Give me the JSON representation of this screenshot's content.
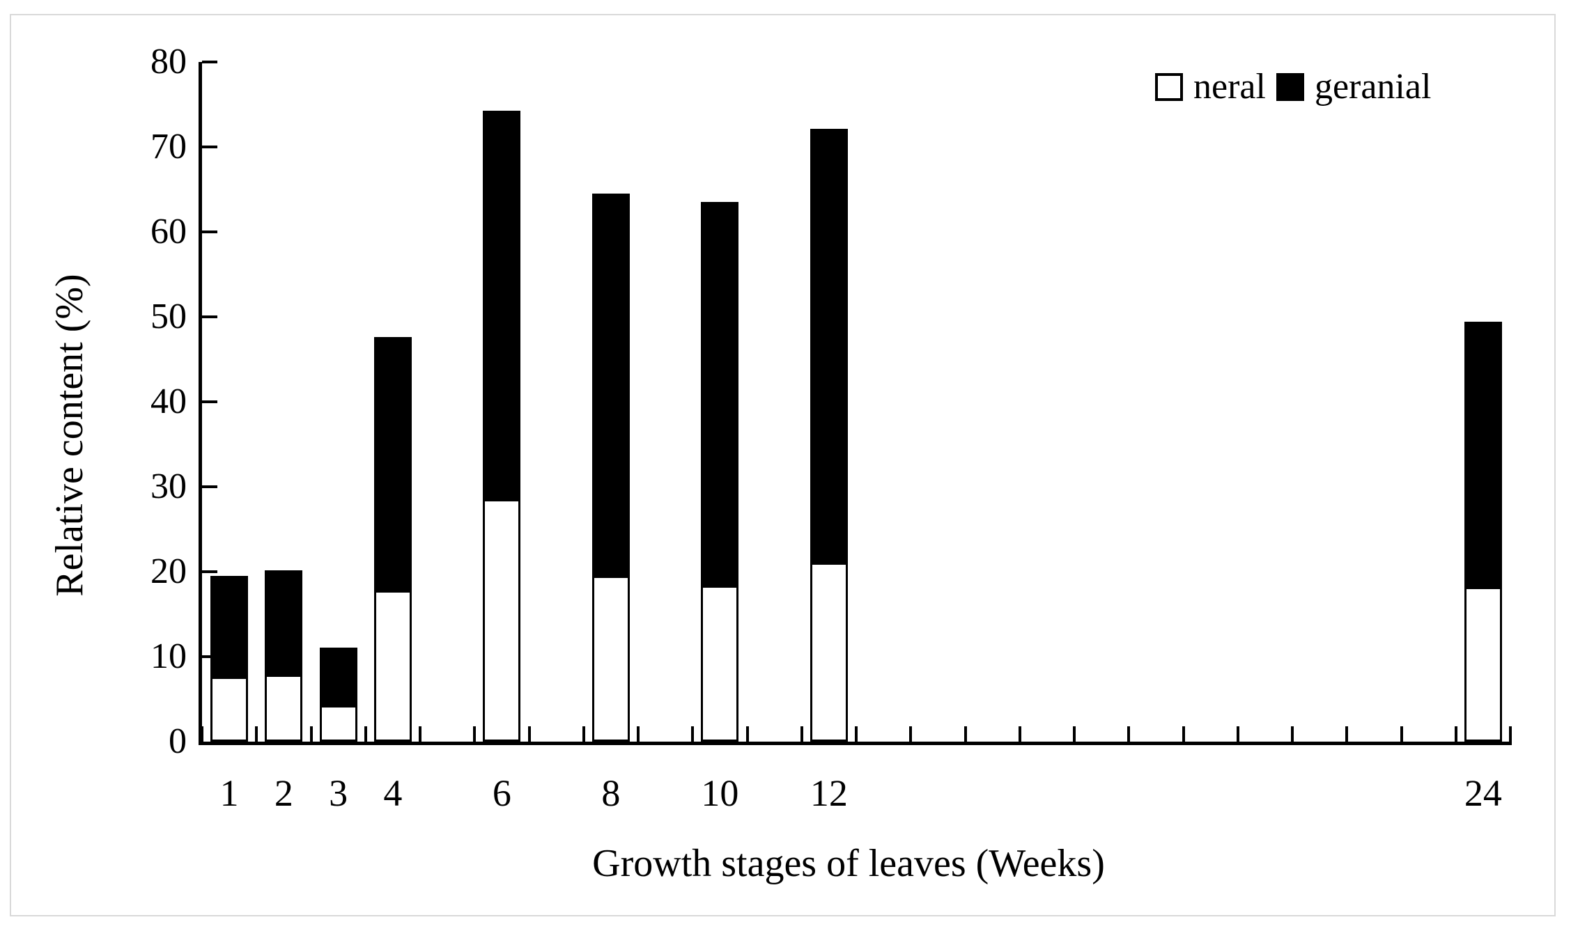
{
  "figure": {
    "background_color": "#ffffff",
    "frame_color": "#d9d9d9",
    "ink_color": "#000000"
  },
  "chart_data": {
    "type": "bar",
    "stacked": true,
    "title": "",
    "xlabel": "Growth stages of leaves (Weeks)",
    "ylabel": "Relative content (%)",
    "ylim": [
      0,
      80
    ],
    "yticks": [
      0,
      10,
      20,
      30,
      40,
      50,
      60,
      70,
      80
    ],
    "x_slot_count": 24,
    "x_ticks_at_every_slot_boundary": true,
    "grid": false,
    "legend_position": "top-right",
    "categories": [
      1,
      2,
      3,
      4,
      6,
      8,
      10,
      12,
      24
    ],
    "series": [
      {
        "name": "neral",
        "color": "#ffffff",
        "values": [
          7.6,
          7.9,
          4.3,
          17.8,
          28.5,
          19.5,
          18.4,
          21.1,
          18.2
        ]
      },
      {
        "name": "geranial",
        "color": "#000000",
        "values": [
          11.9,
          12.3,
          6.8,
          29.8,
          45.8,
          45.0,
          45.1,
          51.0,
          31.2
        ]
      }
    ],
    "stack_totals": [
      19.5,
      20.2,
      11.1,
      47.6,
      74.3,
      64.5,
      63.5,
      72.1,
      49.4
    ]
  },
  "legend": {
    "items": [
      {
        "label": "neral",
        "fill": "#ffffff"
      },
      {
        "label": "geranial",
        "fill": "#000000"
      }
    ]
  }
}
